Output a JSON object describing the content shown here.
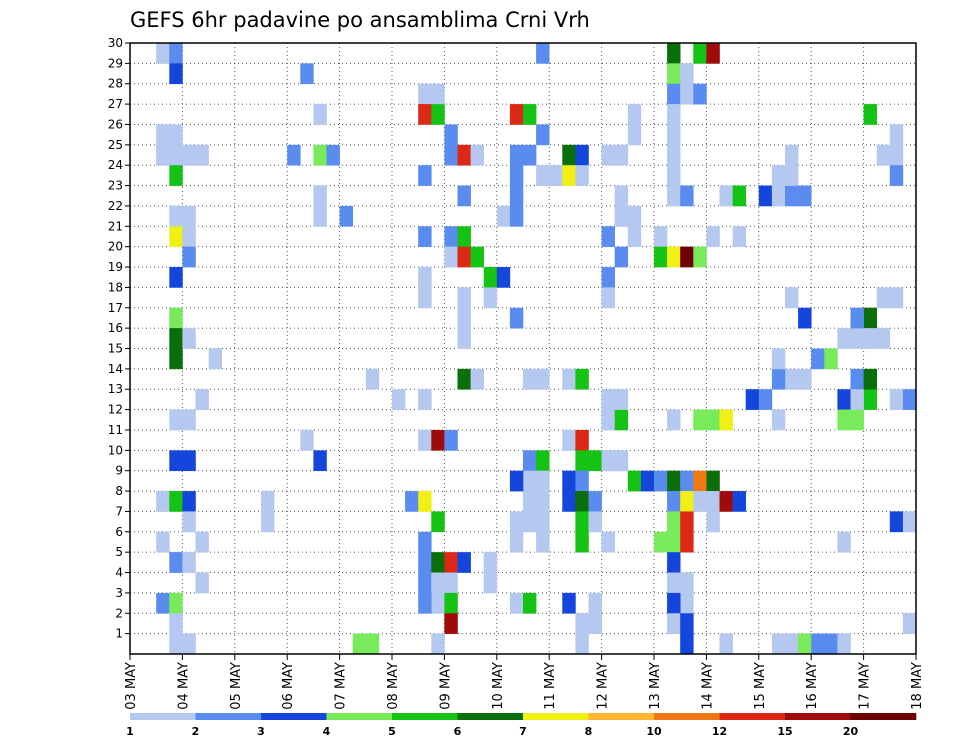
{
  "chart_data": {
    "type": "heatmap",
    "title": "GEFS 6hr padavine po ansamblima Crni Vrh",
    "x_labels": [
      "03 MAY",
      "04 MAY",
      "05 MAY",
      "06 MAY",
      "07 MAY",
      "08 MAY",
      "09 MAY",
      "10 MAY",
      "11 MAY",
      "12 MAY",
      "13 MAY",
      "14 MAY",
      "15 MAY",
      "16 MAY",
      "17 MAY",
      "18 MAY"
    ],
    "y_ticks": [
      1,
      2,
      3,
      4,
      5,
      6,
      7,
      8,
      9,
      10,
      11,
      12,
      13,
      14,
      15,
      16,
      17,
      18,
      19,
      20,
      21,
      22,
      23,
      24,
      25,
      26,
      27,
      28,
      29,
      30
    ],
    "ylim": [
      0,
      30
    ],
    "x_steps_per_day": 4,
    "grid": true,
    "legend": {
      "position": "bottom",
      "labels": [
        "1",
        "2",
        "3",
        "4",
        "5",
        "6",
        "7",
        "8",
        "10",
        "12",
        "15",
        "20"
      ],
      "colors": [
        "#b4c8f0",
        "#5a8cf0",
        "#1446dc",
        "#78eb5a",
        "#14c314",
        "#0a6e0a",
        "#f0f014",
        "#ffb432",
        "#f07814",
        "#dc2814",
        "#a00a0a",
        "#6e0000"
      ]
    },
    "cells": [
      [
        2,
        29,
        1
      ],
      [
        3,
        29,
        2
      ],
      [
        3,
        28,
        3
      ],
      [
        2,
        25,
        1
      ],
      [
        3,
        25,
        1
      ],
      [
        2,
        24,
        1
      ],
      [
        3,
        24,
        1
      ],
      [
        4,
        24,
        1
      ],
      [
        5,
        24,
        1
      ],
      [
        3,
        23,
        5
      ],
      [
        3,
        21,
        1
      ],
      [
        4,
        21,
        1
      ],
      [
        3,
        20,
        7
      ],
      [
        4,
        20,
        1
      ],
      [
        4,
        19,
        2
      ],
      [
        3,
        18,
        3
      ],
      [
        3,
        16,
        4
      ],
      [
        3,
        15,
        6
      ],
      [
        4,
        15,
        1
      ],
      [
        3,
        14,
        6
      ],
      [
        6,
        14,
        1
      ],
      [
        5,
        12,
        1
      ],
      [
        3,
        11,
        1
      ],
      [
        4,
        11,
        1
      ],
      [
        3,
        9,
        3
      ],
      [
        4,
        9,
        3
      ],
      [
        2,
        7,
        1
      ],
      [
        3,
        7,
        5
      ],
      [
        4,
        7,
        3
      ],
      [
        4,
        6,
        1
      ],
      [
        2,
        5,
        1
      ],
      [
        5,
        5,
        1
      ],
      [
        3,
        4,
        2
      ],
      [
        4,
        4,
        1
      ],
      [
        5,
        3,
        1
      ],
      [
        2,
        2,
        2
      ],
      [
        3,
        2,
        4
      ],
      [
        3,
        1,
        1
      ],
      [
        3,
        0,
        1
      ],
      [
        4,
        0,
        1
      ],
      [
        13,
        28,
        2
      ],
      [
        14,
        26,
        1
      ],
      [
        12,
        24,
        2
      ],
      [
        14,
        24,
        4
      ],
      [
        15,
        24,
        2
      ],
      [
        14,
        22,
        1
      ],
      [
        14,
        21,
        1
      ],
      [
        16,
        21,
        2
      ],
      [
        13,
        10,
        1
      ],
      [
        14,
        9,
        3
      ],
      [
        10,
        7,
        1
      ],
      [
        10,
        6,
        1
      ],
      [
        17,
        0,
        4
      ],
      [
        18,
        0,
        4
      ],
      [
        18,
        13,
        1
      ],
      [
        20,
        12,
        1
      ],
      [
        22,
        12,
        1
      ],
      [
        22,
        27,
        1
      ],
      [
        23,
        27,
        1
      ],
      [
        22,
        26,
        10
      ],
      [
        23,
        26,
        5
      ],
      [
        24,
        25,
        2
      ],
      [
        24,
        24,
        2
      ],
      [
        25,
        24,
        10
      ],
      [
        26,
        24,
        1
      ],
      [
        22,
        23,
        2
      ],
      [
        25,
        22,
        2
      ],
      [
        22,
        20,
        2
      ],
      [
        24,
        20,
        2
      ],
      [
        25,
        20,
        5
      ],
      [
        24,
        19,
        1
      ],
      [
        25,
        19,
        10
      ],
      [
        26,
        19,
        5
      ],
      [
        22,
        18,
        1
      ],
      [
        25,
        17,
        1
      ],
      [
        27,
        18,
        5
      ],
      [
        28,
        18,
        3
      ],
      [
        22,
        17,
        1
      ],
      [
        27,
        17,
        1
      ],
      [
        25,
        16,
        1
      ],
      [
        25,
        15,
        1
      ],
      [
        25,
        13,
        6
      ],
      [
        26,
        13,
        1
      ],
      [
        22,
        10,
        1
      ],
      [
        23,
        10,
        11
      ],
      [
        24,
        10,
        2
      ],
      [
        21,
        7,
        2
      ],
      [
        22,
        7,
        7
      ],
      [
        23,
        6,
        5
      ],
      [
        22,
        5,
        2
      ],
      [
        22,
        4,
        2
      ],
      [
        23,
        4,
        6
      ],
      [
        24,
        4,
        10
      ],
      [
        25,
        4,
        3
      ],
      [
        22,
        3,
        2
      ],
      [
        23,
        3,
        1
      ],
      [
        24,
        3,
        1
      ],
      [
        27,
        4,
        1
      ],
      [
        27,
        3,
        1
      ],
      [
        23,
        2,
        1
      ],
      [
        22,
        2,
        2
      ],
      [
        24,
        2,
        5
      ],
      [
        24,
        1,
        11
      ],
      [
        23,
        0,
        1
      ],
      [
        31,
        29,
        2
      ],
      [
        29,
        26,
        10
      ],
      [
        30,
        26,
        5
      ],
      [
        31,
        25,
        2
      ],
      [
        29,
        24,
        2
      ],
      [
        30,
        24,
        2
      ],
      [
        33,
        24,
        6
      ],
      [
        34,
        24,
        3
      ],
      [
        36,
        24,
        1
      ],
      [
        37,
        24,
        1
      ],
      [
        29,
        23,
        2
      ],
      [
        31,
        23,
        1
      ],
      [
        32,
        23,
        1
      ],
      [
        33,
        23,
        7
      ],
      [
        34,
        23,
        1
      ],
      [
        29,
        22,
        2
      ],
      [
        28,
        21,
        1
      ],
      [
        29,
        21,
        2
      ],
      [
        29,
        16,
        2
      ],
      [
        30,
        13,
        1
      ],
      [
        31,
        13,
        1
      ],
      [
        33,
        13,
        1
      ],
      [
        34,
        13,
        5
      ],
      [
        33,
        10,
        1
      ],
      [
        34,
        10,
        10
      ],
      [
        30,
        9,
        2
      ],
      [
        31,
        9,
        5
      ],
      [
        34,
        9,
        5
      ],
      [
        35,
        9,
        5
      ],
      [
        36,
        9,
        1
      ],
      [
        37,
        9,
        1
      ],
      [
        30,
        8,
        1
      ],
      [
        31,
        8,
        1
      ],
      [
        29,
        8,
        3
      ],
      [
        33,
        8,
        3
      ],
      [
        34,
        8,
        2
      ],
      [
        30,
        7,
        1
      ],
      [
        31,
        7,
        1
      ],
      [
        33,
        7,
        3
      ],
      [
        34,
        7,
        6
      ],
      [
        35,
        7,
        2
      ],
      [
        34,
        6,
        5
      ],
      [
        35,
        6,
        1
      ],
      [
        29,
        6,
        1
      ],
      [
        30,
        6,
        1
      ],
      [
        31,
        6,
        1
      ],
      [
        29,
        5,
        1
      ],
      [
        31,
        5,
        1
      ],
      [
        34,
        5,
        5
      ],
      [
        36,
        5,
        1
      ],
      [
        29,
        2,
        1
      ],
      [
        30,
        2,
        5
      ],
      [
        33,
        2,
        3
      ],
      [
        35,
        2,
        1
      ],
      [
        34,
        1,
        1
      ],
      [
        35,
        1,
        1
      ],
      [
        34,
        0,
        1
      ],
      [
        38,
        26,
        1
      ],
      [
        38,
        25,
        1
      ],
      [
        37,
        22,
        1
      ],
      [
        37,
        21,
        1
      ],
      [
        38,
        21,
        1
      ],
      [
        38,
        20,
        1
      ],
      [
        36,
        20,
        2
      ],
      [
        37,
        19,
        2
      ],
      [
        36,
        18,
        2
      ],
      [
        36,
        17,
        1
      ],
      [
        38,
        8,
        5
      ],
      [
        39,
        8,
        3
      ],
      [
        36,
        11,
        1
      ],
      [
        37,
        11,
        5
      ],
      [
        36,
        12,
        1
      ],
      [
        37,
        12,
        1
      ],
      [
        41,
        29,
        6
      ],
      [
        43,
        29,
        5
      ],
      [
        44,
        29,
        11
      ],
      [
        41,
        28,
        4
      ],
      [
        42,
        28,
        1
      ],
      [
        41,
        27,
        2
      ],
      [
        42,
        27,
        1
      ],
      [
        43,
        27,
        2
      ],
      [
        41,
        26,
        1
      ],
      [
        41,
        25,
        1
      ],
      [
        41,
        24,
        1
      ],
      [
        41,
        23,
        1
      ],
      [
        41,
        22,
        1
      ],
      [
        42,
        22,
        2
      ],
      [
        40,
        20,
        1
      ],
      [
        44,
        20,
        1
      ],
      [
        40,
        19,
        5
      ],
      [
        41,
        19,
        7
      ],
      [
        42,
        19,
        12
      ],
      [
        43,
        19,
        4
      ],
      [
        41,
        11,
        1
      ],
      [
        43,
        11,
        4
      ],
      [
        44,
        11,
        4
      ],
      [
        45,
        11,
        7
      ],
      [
        40,
        8,
        2
      ],
      [
        41,
        8,
        6
      ],
      [
        42,
        8,
        2
      ],
      [
        43,
        8,
        9
      ],
      [
        44,
        8,
        6
      ],
      [
        41,
        7,
        2
      ],
      [
        42,
        7,
        7
      ],
      [
        43,
        7,
        1
      ],
      [
        44,
        7,
        1
      ],
      [
        45,
        7,
        11
      ],
      [
        41,
        6,
        4
      ],
      [
        42,
        6,
        10
      ],
      [
        44,
        6,
        1
      ],
      [
        40,
        5,
        4
      ],
      [
        41,
        5,
        4
      ],
      [
        42,
        5,
        10
      ],
      [
        41,
        4,
        3
      ],
      [
        41,
        3,
        1
      ],
      [
        42,
        3,
        1
      ],
      [
        42,
        2,
        1
      ],
      [
        41,
        2,
        3
      ],
      [
        41,
        1,
        1
      ],
      [
        42,
        1,
        3
      ],
      [
        42,
        0,
        3
      ],
      [
        45,
        0,
        1
      ],
      [
        45,
        22,
        1
      ],
      [
        46,
        22,
        5
      ],
      [
        48,
        22,
        3
      ],
      [
        49,
        22,
        1
      ],
      [
        50,
        22,
        2
      ],
      [
        51,
        22,
        2
      ],
      [
        50,
        24,
        1
      ],
      [
        49,
        23,
        1
      ],
      [
        50,
        23,
        1
      ],
      [
        46,
        20,
        1
      ],
      [
        50,
        17,
        1
      ],
      [
        51,
        16,
        3
      ],
      [
        50,
        13,
        1
      ],
      [
        51,
        13,
        1
      ],
      [
        49,
        13,
        2
      ],
      [
        47,
        12,
        3
      ],
      [
        48,
        12,
        2
      ],
      [
        49,
        11,
        1
      ],
      [
        46,
        7,
        3
      ],
      [
        50,
        0,
        1
      ],
      [
        49,
        0,
        1
      ],
      [
        51,
        0,
        4
      ],
      [
        52,
        0,
        2
      ],
      [
        49,
        14,
        1
      ],
      [
        52,
        14,
        2
      ],
      [
        53,
        14,
        4
      ]
    ],
    "cells_b": [
      [
        56,
        26,
        5
      ],
      [
        57,
        24,
        1
      ],
      [
        58,
        24,
        1
      ],
      [
        58,
        25,
        1
      ],
      [
        58,
        23,
        2
      ],
      [
        56,
        16,
        6
      ],
      [
        54,
        15,
        1
      ],
      [
        55,
        15,
        1
      ],
      [
        55,
        16,
        2
      ],
      [
        56,
        15,
        1
      ],
      [
        57,
        15,
        1
      ],
      [
        57,
        17,
        1
      ],
      [
        58,
        17,
        1
      ],
      [
        54,
        12,
        3
      ],
      [
        55,
        12,
        1
      ],
      [
        56,
        12,
        5
      ],
      [
        54,
        11,
        4
      ],
      [
        55,
        11,
        4
      ],
      [
        55,
        13,
        2
      ],
      [
        55,
        12,
        1
      ],
      [
        56,
        13,
        6
      ],
      [
        58,
        12,
        1
      ],
      [
        59,
        12,
        2
      ],
      [
        54,
        5,
        1
      ],
      [
        58,
        6,
        3
      ],
      [
        59,
        6,
        1
      ],
      [
        59,
        1,
        1
      ],
      [
        53,
        0,
        2
      ],
      [
        54,
        0,
        1
      ]
    ]
  }
}
